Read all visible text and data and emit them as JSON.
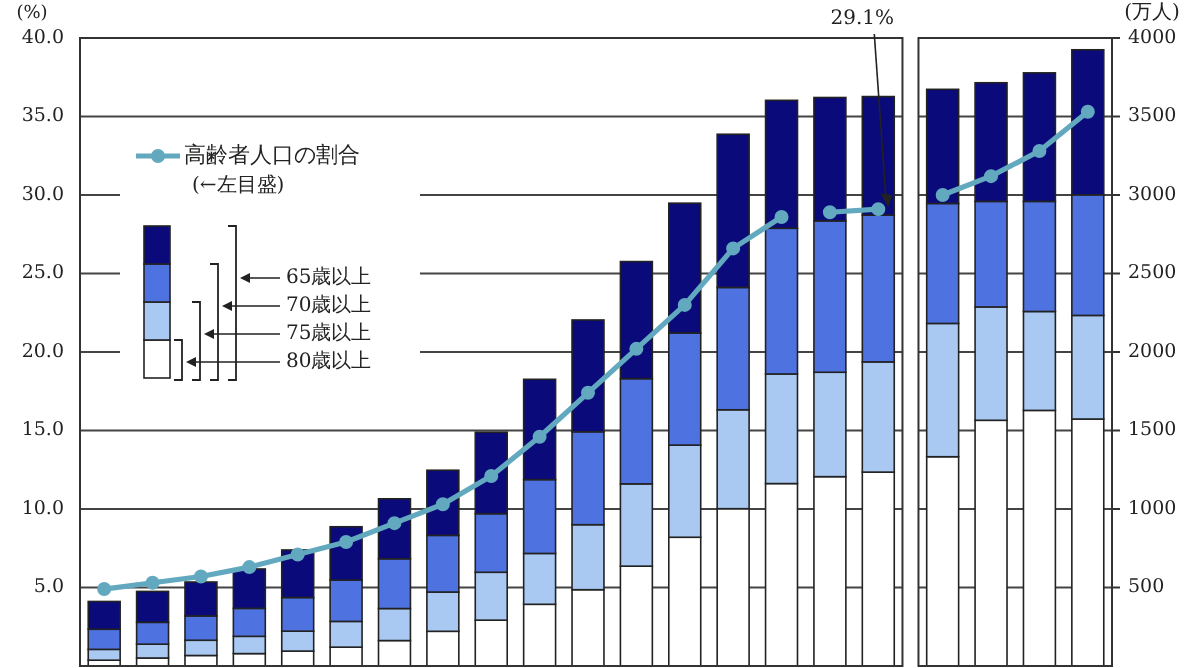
{
  "chart_data": {
    "type": "bar",
    "stacked": true,
    "categories": [
      null,
      null,
      null,
      null,
      null,
      null,
      null,
      null,
      null,
      null,
      null,
      null,
      null,
      null,
      null,
      null,
      null,
      null,
      null,
      null,
      null
    ],
    "ylabel": "(%)",
    "ylim": [
      0,
      40
    ],
    "yticks": [
      {
        "value": 5,
        "label": "5.0"
      },
      {
        "value": 10,
        "label": "10.0"
      },
      {
        "value": 15,
        "label": "15.0"
      },
      {
        "value": 20,
        "label": "20.0"
      },
      {
        "value": 25,
        "label": "25.0"
      },
      {
        "value": 30,
        "label": "30.0"
      },
      {
        "value": 35,
        "label": "35.0"
      },
      {
        "value": 40,
        "label": "40.0"
      }
    ],
    "y2label": "(万人)",
    "y2lim": [
      0,
      4000
    ],
    "y2ticks": [
      500,
      1000,
      1500,
      2000,
      2500,
      3000,
      3500,
      4000
    ],
    "grid": "y",
    "legend": "top left",
    "annotations": [
      "(←左目盛)",
      "29.1%"
    ],
    "series": [
      {
        "name": "80歳以上",
        "color": "#ffffff",
        "axis": "y2",
        "values": [
          37,
          51,
          67,
          79,
          95,
          120,
          162,
          221,
          292,
          393,
          486,
          636,
          820,
          1002,
          1162,
          1206,
          1235,
          1333,
          1565,
          1628,
          1573
        ]
      },
      {
        "name": "75歳以上",
        "color": "#a9c9f2",
        "axis": "y2",
        "values": [
          69,
          88,
          97,
          110,
          127,
          164,
          204,
          250,
          305,
          324,
          414,
          524,
          587,
          630,
          698,
          665,
          702,
          849,
          722,
          630,
          660
        ]
      },
      {
        "name": "70歳以上",
        "color": "#4e72e0",
        "axis": "y2",
        "values": [
          128,
          139,
          155,
          178,
          214,
          263,
          317,
          361,
          373,
          470,
          592,
          670,
          714,
          779,
          928,
          964,
          935,
          764,
          672,
          701,
          768
        ]
      },
      {
        "name": "65歳以上",
        "color": "#0a0a7a",
        "axis": "y2",
        "values": [
          177,
          197,
          216,
          251,
          303,
          340,
          382,
          415,
          519,
          639,
          712,
          746,
          827,
          976,
          815,
          786,
          755,
          727,
          756,
          819,
          924
        ]
      },
      {
        "name": "高齢者人口の割合",
        "type": "line",
        "axis": "y",
        "marker": "circle",
        "color": "#62a9c0",
        "values": [
          4.9,
          5.3,
          5.7,
          6.3,
          7.1,
          7.9,
          9.1,
          10.3,
          12.1,
          14.6,
          17.4,
          20.2,
          23.0,
          26.6,
          28.6,
          null,
          null,
          null,
          null,
          null,
          null
        ]
      },
      {
        "type": "line",
        "axis": "y",
        "marker": "circle",
        "color": "#62a9c0",
        "values": [
          null,
          null,
          null,
          null,
          null,
          null,
          null,
          null,
          null,
          null,
          null,
          null,
          null,
          null,
          null,
          28.9,
          29.1,
          null,
          null,
          null,
          null
        ]
      },
      {
        "type": "line",
        "axis": "y",
        "marker": "circle",
        "color": "#62a9c0",
        "values": [
          null,
          null,
          null,
          null,
          null,
          null,
          null,
          null,
          null,
          null,
          null,
          null,
          null,
          null,
          null,
          null,
          null,
          30.0,
          31.2,
          32.8,
          35.3
        ]
      }
    ]
  }
}
